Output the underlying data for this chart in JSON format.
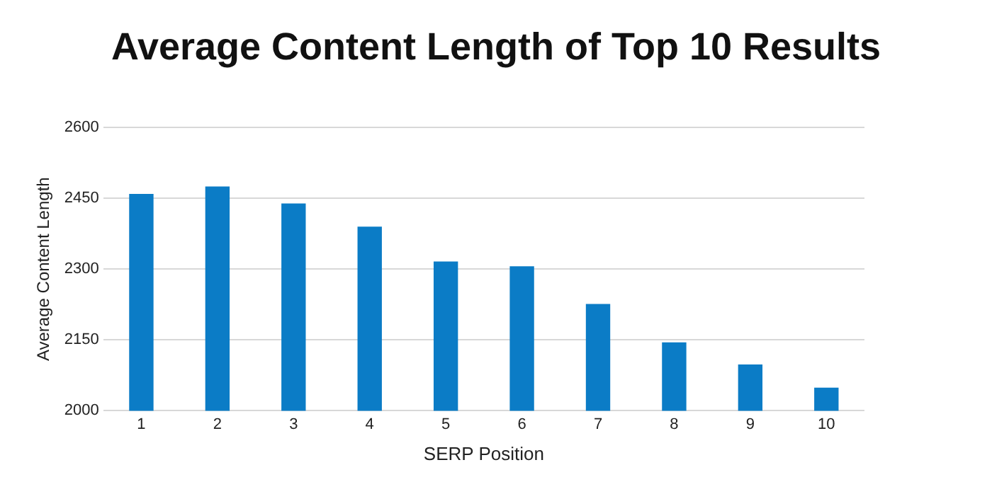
{
  "chart_data": {
    "type": "bar",
    "title": "Average Content Length of Top 10 Results",
    "xlabel": "SERP Position",
    "ylabel": "Average Content Length",
    "categories": [
      "1",
      "2",
      "3",
      "4",
      "5",
      "6",
      "7",
      "8",
      "9",
      "10"
    ],
    "values": [
      2459,
      2475,
      2439,
      2390,
      2316,
      2306,
      2226,
      2145,
      2098,
      2049
    ],
    "color": "#0b7cc6",
    "ylim": [
      2000,
      2600
    ],
    "yticks": [
      2000,
      2150,
      2300,
      2450,
      2600
    ],
    "grid": "y",
    "legend": false
  }
}
